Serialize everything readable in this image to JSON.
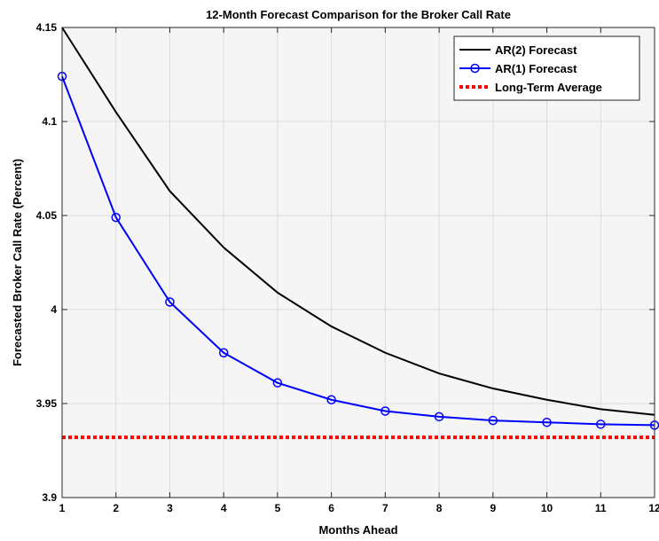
{
  "chart_data": {
    "type": "line",
    "title": "12-Month Forecast Comparison for the Broker Call Rate",
    "xlabel": "Months Ahead",
    "ylabel": "Forecasted Broker Call Rate (Percent)",
    "x": [
      1,
      2,
      3,
      4,
      5,
      6,
      7,
      8,
      9,
      10,
      11,
      12
    ],
    "xlim": [
      1,
      12
    ],
    "ylim": [
      3.9,
      4.15
    ],
    "xticks": [
      "1",
      "2",
      "3",
      "4",
      "5",
      "6",
      "7",
      "8",
      "9",
      "10",
      "11",
      "12"
    ],
    "yticks": [
      "3.9",
      "3.95",
      "4",
      "4.05",
      "4.1",
      "4.15"
    ],
    "grid": true,
    "legend_position": "top-right",
    "series": [
      {
        "name": "AR(2) Forecast",
        "style": "solid",
        "marker": "none",
        "color": "#000000",
        "values": [
          4.15,
          4.105,
          4.063,
          4.033,
          4.009,
          3.991,
          3.977,
          3.966,
          3.958,
          3.952,
          3.947,
          3.944
        ]
      },
      {
        "name": "AR(1) Forecast",
        "style": "solid",
        "marker": "circle",
        "color": "#0000ff",
        "values": [
          4.124,
          4.049,
          4.004,
          3.977,
          3.961,
          3.952,
          3.946,
          3.943,
          3.941,
          3.94,
          3.939,
          3.9385
        ]
      },
      {
        "name": "Long-Term Average",
        "style": "dotted",
        "marker": "none",
        "color": "#ff0000",
        "values": [
          3.932,
          3.932,
          3.932,
          3.932,
          3.932,
          3.932,
          3.932,
          3.932,
          3.932,
          3.932,
          3.932,
          3.932
        ]
      }
    ]
  }
}
